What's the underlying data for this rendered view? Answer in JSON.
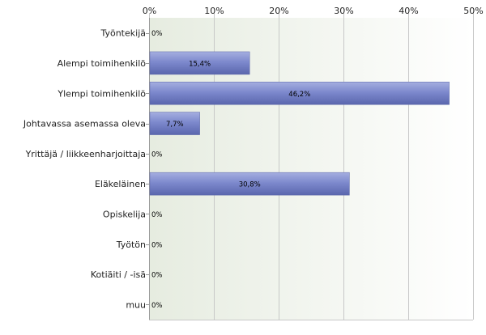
{
  "chart_data": {
    "type": "bar",
    "orientation": "horizontal",
    "categories": [
      "Työntekijä",
      "Alempi toimihenkilö",
      "Ylempi toimihenkilö",
      "Johtavassa asemassa oleva",
      "Yrittäjä / liikkeenharjoittaja",
      "Eläkeläinen",
      "Opiskelija",
      "Työtön",
      "Kotiäiti / -isä",
      "muu"
    ],
    "values": [
      0,
      15.4,
      46.2,
      7.7,
      0,
      30.8,
      0,
      0,
      0,
      0
    ],
    "value_labels": [
      "0%",
      "15,4%",
      "46,2%",
      "7,7%",
      "0%",
      "30,8%",
      "0%",
      "0%",
      "0%",
      "0%"
    ],
    "xlim": [
      0,
      50
    ],
    "x_ticks": [
      0,
      10,
      20,
      30,
      40,
      50
    ],
    "x_tick_labels": [
      "0%",
      "10%",
      "20%",
      "30%",
      "40%",
      "50%"
    ],
    "x_axis_position": "top",
    "grid": true,
    "bar_color": "#7d89cd",
    "title": "",
    "xlabel": "",
    "ylabel": ""
  }
}
